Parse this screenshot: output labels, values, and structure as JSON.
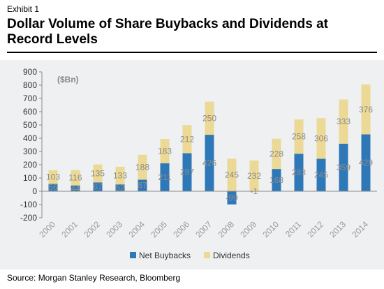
{
  "header": {
    "exhibit": "Exhibit 1",
    "title": "Dollar Volume of Share Buybacks and Dividends at Record Levels"
  },
  "source": "Source: Morgan Stanley Research, Bloomberg",
  "chart_data": {
    "type": "bar",
    "stacked": true,
    "categories": [
      "2000",
      "2001",
      "2002",
      "2003",
      "2004",
      "2005",
      "2006",
      "2007",
      "2008",
      "2009",
      "2010",
      "2011",
      "2012",
      "2013",
      "2014"
    ],
    "series": [
      {
        "name": "Net Buybacks",
        "color": "#2f78b8",
        "values": [
          56,
          44,
          67,
          52,
          87,
          211,
          287,
          426,
          -99,
          -1,
          168,
          283,
          245,
          359,
          429
        ]
      },
      {
        "name": "Dividends",
        "color": "#ecd995",
        "values": [
          103,
          116,
          135,
          133,
          188,
          183,
          212,
          250,
          245,
          232,
          228,
          258,
          306,
          333,
          376
        ]
      }
    ],
    "unit_label": "($Bn)",
    "ylim": [
      -200,
      900
    ],
    "yticks": [
      -200,
      -100,
      0,
      100,
      200,
      300,
      400,
      500,
      600,
      700,
      800,
      900
    ],
    "legend": "bottom",
    "grid": false
  }
}
